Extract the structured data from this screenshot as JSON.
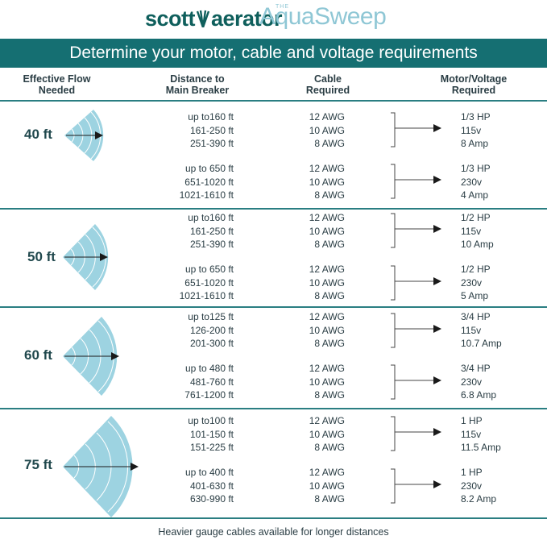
{
  "brand": {
    "company_part1": "scott",
    "company_part2": "aerator",
    "product_prefix": "THE",
    "product_name": "AquaSweep"
  },
  "banner": {
    "title": "Determine your motor, cable and voltage requirements"
  },
  "headers": {
    "flow": [
      "Effective Flow",
      "Needed"
    ],
    "distance": [
      "Distance to",
      "Main Breaker"
    ],
    "cable": [
      "Cable",
      "Required"
    ],
    "motor": [
      "Motor/Voltage",
      "Required"
    ]
  },
  "sections": [
    {
      "flow": "40 ft",
      "groups": [
        {
          "distances": [
            "up to160 ft",
            "161-250 ft",
            "251-390 ft"
          ],
          "cables": [
            "12 AWG",
            "10 AWG",
            "8 AWG"
          ],
          "motor": [
            "1/3 HP",
            "115v",
            "8 Amp"
          ]
        },
        {
          "distances": [
            "up to 650 ft",
            "651-1020  ft",
            "1021-1610  ft"
          ],
          "cables": [
            "12 AWG",
            "10 AWG",
            "8 AWG"
          ],
          "motor": [
            "1/3 HP",
            "230v",
            "4 Amp"
          ]
        }
      ]
    },
    {
      "flow": "50 ft",
      "groups": [
        {
          "distances": [
            "up to160 ft",
            "161-250 ft",
            "251-390 ft"
          ],
          "cables": [
            "12 AWG",
            "10 AWG",
            "8 AWG"
          ],
          "motor": [
            "1/2 HP",
            "115v",
            "10 Amp"
          ]
        },
        {
          "distances": [
            "up to 650 ft",
            "651-1020  ft",
            "1021-1610  ft"
          ],
          "cables": [
            "12 AWG",
            "10 AWG",
            "8 AWG"
          ],
          "motor": [
            "1/2 HP",
            "230v",
            "5 Amp"
          ]
        }
      ]
    },
    {
      "flow": "60 ft",
      "groups": [
        {
          "distances": [
            "up to125 ft",
            "126-200 ft",
            "201-300 ft"
          ],
          "cables": [
            "12 AWG",
            "10 AWG",
            "8 AWG"
          ],
          "motor": [
            "3/4 HP",
            "115v",
            "10.7 Amp"
          ]
        },
        {
          "distances": [
            "up to 480 ft",
            "481-760 ft",
            "761-1200 ft"
          ],
          "cables": [
            "12 AWG",
            "10 AWG",
            "8 AWG"
          ],
          "motor": [
            "3/4 HP",
            "230v",
            "6.8 Amp"
          ]
        }
      ]
    },
    {
      "flow": "75 ft",
      "groups": [
        {
          "distances": [
            "up to100 ft",
            "101-150 ft",
            "151-225 ft"
          ],
          "cables": [
            "12 AWG",
            "10 AWG",
            "8 AWG"
          ],
          "motor": [
            "1 HP",
            "115v",
            "11.5 Amp"
          ]
        },
        {
          "distances": [
            "up to 400 ft",
            "401-630 ft",
            "630-990 ft"
          ],
          "cables": [
            "12 AWG",
            "10 AWG",
            "8 AWG"
          ],
          "motor": [
            "1 HP",
            "230v",
            "8.2 Amp"
          ]
        }
      ]
    }
  ],
  "footer": "Heavier gauge cables available for longer distances",
  "colors": {
    "teal": "#156f72",
    "sector_fill": "#9dd3e1",
    "light_blue": "#8fc7d5",
    "text": "#2a3d44"
  }
}
